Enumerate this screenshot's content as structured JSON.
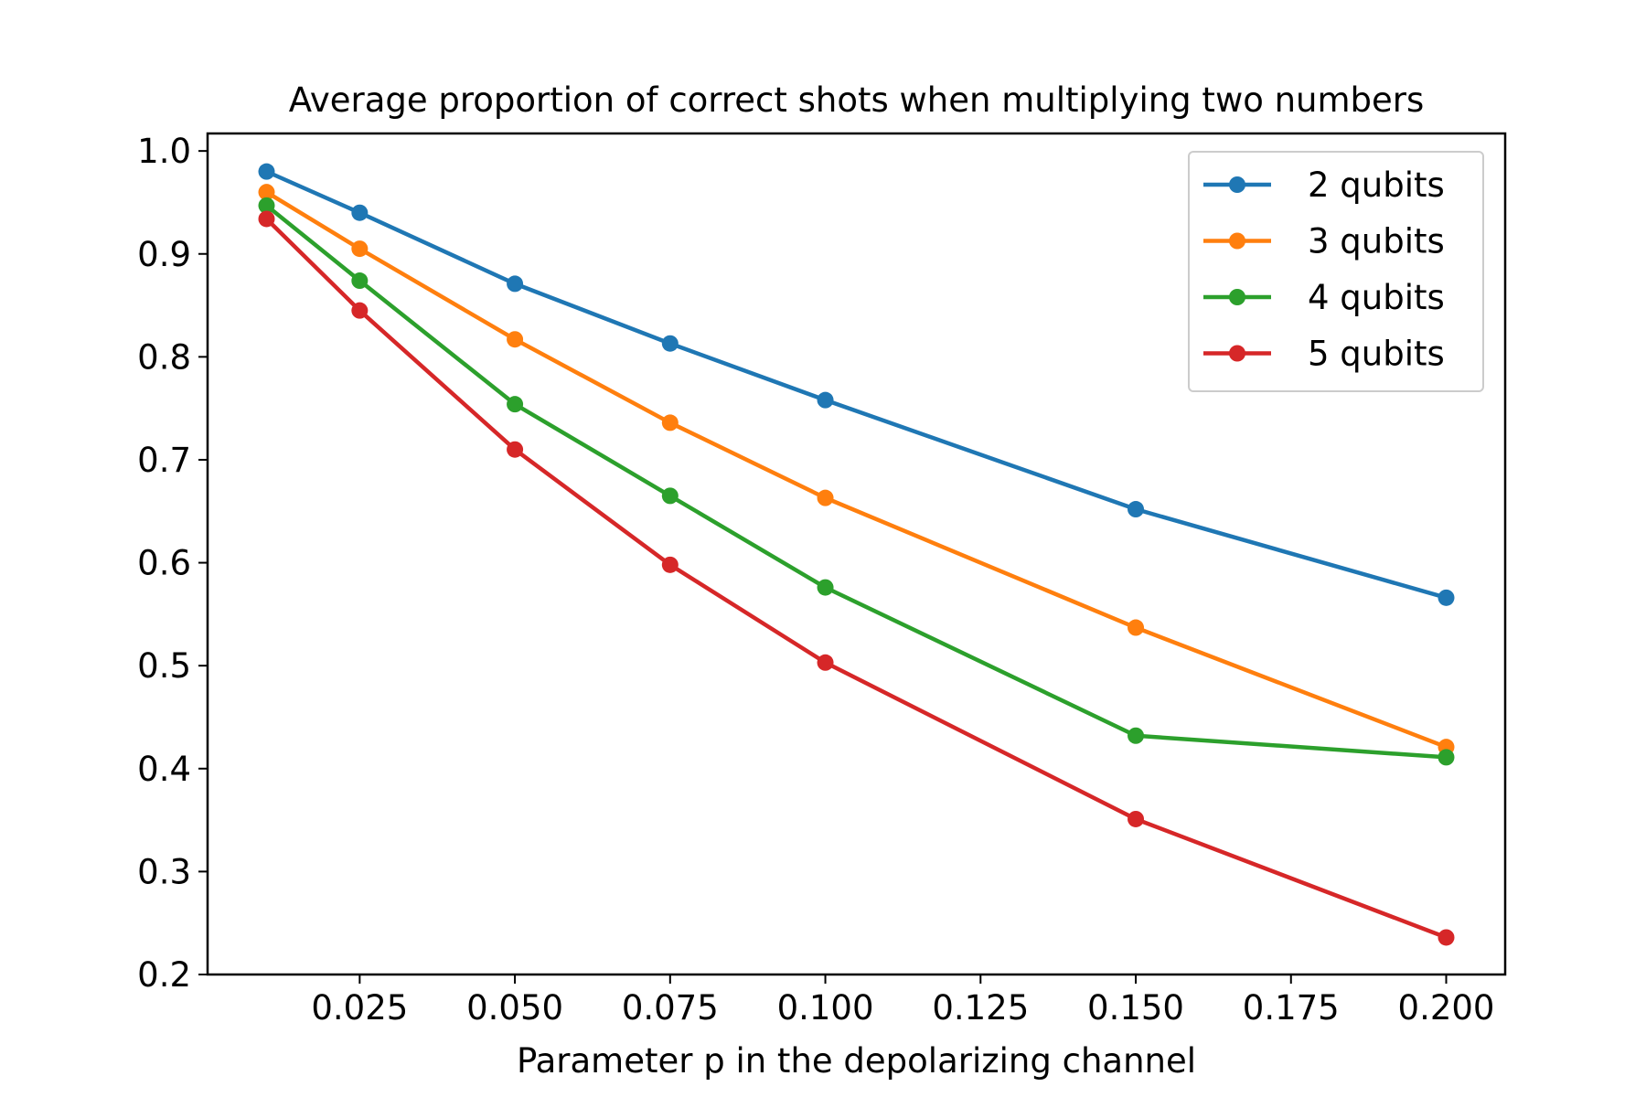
{
  "chart_data": {
    "type": "line",
    "title": "Average proportion of correct shots when multiplying two numbers",
    "xlabel": "Parameter p in the depolarizing channel",
    "ylabel": "",
    "x": [
      0.01,
      0.025,
      0.05,
      0.075,
      0.1,
      0.15,
      0.2
    ],
    "xlim": [
      0.0005,
      0.2095
    ],
    "ylim": [
      0.2,
      1.017
    ],
    "xticks": [
      0.025,
      0.05,
      0.075,
      0.1,
      0.125,
      0.15,
      0.175,
      0.2
    ],
    "xtick_labels": [
      "0.025",
      "0.050",
      "0.075",
      "0.100",
      "0.125",
      "0.150",
      "0.175",
      "0.200"
    ],
    "yticks": [
      0.2,
      0.3,
      0.4,
      0.5,
      0.6,
      0.7,
      0.8,
      0.9,
      1.0
    ],
    "ytick_labels": [
      "0.2",
      "0.3",
      "0.4",
      "0.5",
      "0.6",
      "0.7",
      "0.8",
      "0.9",
      "1.0"
    ],
    "grid": false,
    "legend_position": "top-right",
    "series": [
      {
        "name": "2 qubits",
        "color": "#1f77b4",
        "values": [
          0.98,
          0.94,
          0.871,
          0.813,
          0.758,
          0.652,
          0.566
        ]
      },
      {
        "name": "3 qubits",
        "color": "#ff7f0e",
        "values": [
          0.96,
          0.905,
          0.817,
          0.736,
          0.663,
          0.537,
          0.421
        ]
      },
      {
        "name": "4 qubits",
        "color": "#2ca02c",
        "values": [
          0.947,
          0.874,
          0.754,
          0.665,
          0.576,
          0.432,
          0.411
        ]
      },
      {
        "name": "5 qubits",
        "color": "#d62728",
        "values": [
          0.934,
          0.845,
          0.71,
          0.598,
          0.503,
          0.351,
          0.236
        ]
      }
    ]
  }
}
